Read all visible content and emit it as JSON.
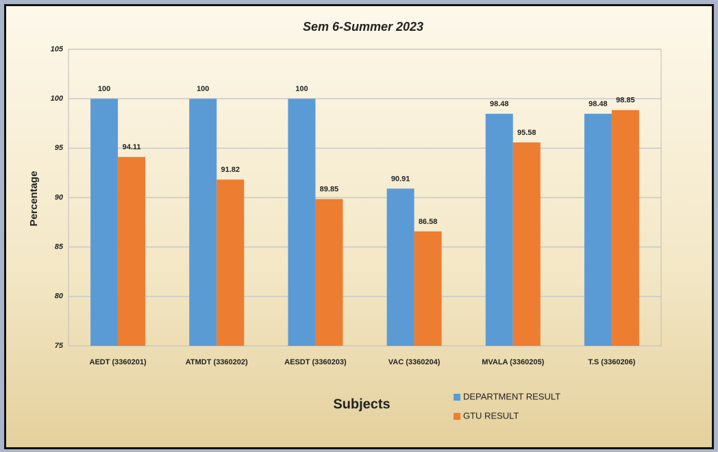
{
  "chart_data": {
    "type": "bar",
    "title": "Sem 6-Summer 2023",
    "x_label": "Subjects",
    "y_label": "Percentage",
    "categories": [
      "AEDT (3360201)",
      "ATMDT (3360202)",
      "AESDT (3360203)",
      "VAC (3360204)",
      "MVALA (3360205)",
      "T.S (3360206)"
    ],
    "series": [
      {
        "name": "DEPARTMENT RESULT",
        "color": "#5b9bd5",
        "values": [
          100,
          100,
          100,
          90.91,
          98.48,
          98.48
        ]
      },
      {
        "name": "GTU RESULT",
        "color": "#ed7d31",
        "values": [
          94.11,
          91.82,
          89.85,
          86.58,
          95.58,
          98.85
        ]
      }
    ],
    "ylim": [
      75,
      105
    ],
    "yticks": [
      75,
      80,
      85,
      90,
      95,
      100,
      105
    ],
    "grid": true
  }
}
